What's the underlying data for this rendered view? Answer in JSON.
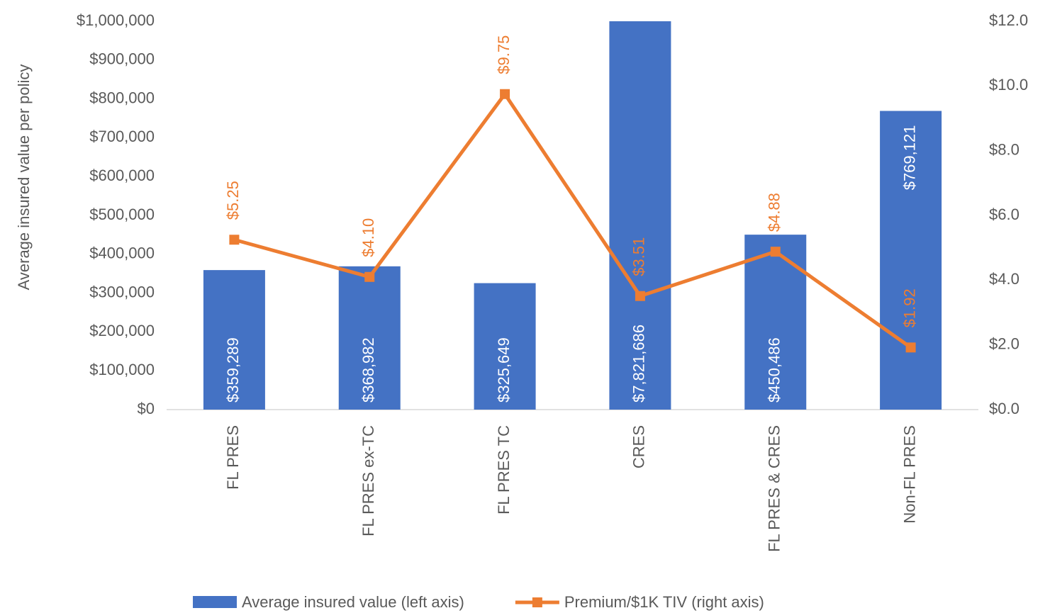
{
  "chart_data": {
    "type": "bar_line",
    "y_label": "Average insured value per policy",
    "categories": [
      "FL PRES",
      "FL PRES ex-TC",
      "FL PRES TC",
      "CRES",
      "FL PRES & CRES",
      "Non-FL PRES"
    ],
    "series": [
      {
        "name": "Average insured value (left axis)",
        "type": "bar",
        "color": "#4472c4",
        "values": [
          359289,
          368982,
          325649,
          7821686,
          450486,
          769121
        ],
        "value_labels": [
          "$359,289",
          "$368,982",
          "$325,649",
          "$7,821,686",
          "$450,486",
          "$769,121"
        ]
      },
      {
        "name": "Premium/$1K TIV (right axis)",
        "type": "line",
        "axis": "y2",
        "color": "#ed7d31",
        "values": [
          5.25,
          4.1,
          9.75,
          3.51,
          4.88,
          1.92
        ],
        "value_labels": [
          "$5.25",
          "$4.10",
          "$9.75",
          "$3.51",
          "$4.88",
          "$1.92"
        ]
      }
    ],
    "ylim": [
      0,
      1000000
    ],
    "yticks": [
      {
        "value": 0,
        "label": "$0"
      },
      {
        "value": 100000,
        "label": "$100,000"
      },
      {
        "value": 200000,
        "label": "$200,000"
      },
      {
        "value": 300000,
        "label": "$300,000"
      },
      {
        "value": 400000,
        "label": "$400,000"
      },
      {
        "value": 500000,
        "label": "$500,000"
      },
      {
        "value": 600000,
        "label": "$600,000"
      },
      {
        "value": 700000,
        "label": "$700,000"
      },
      {
        "value": 800000,
        "label": "$800,000"
      },
      {
        "value": 900000,
        "label": "$900,000"
      },
      {
        "value": 1000000,
        "label": "$1,000,000"
      }
    ],
    "y2lim": [
      0,
      12
    ],
    "y2ticks": [
      {
        "value": 0,
        "label": "$0.0"
      },
      {
        "value": 2,
        "label": "$2.0"
      },
      {
        "value": 4,
        "label": "$4.0"
      },
      {
        "value": 6,
        "label": "$6.0"
      },
      {
        "value": 8,
        "label": "$8.0"
      },
      {
        "value": 10,
        "label": "$10.0"
      },
      {
        "value": 12,
        "label": "$12.0"
      }
    ],
    "legend": "bottom"
  }
}
